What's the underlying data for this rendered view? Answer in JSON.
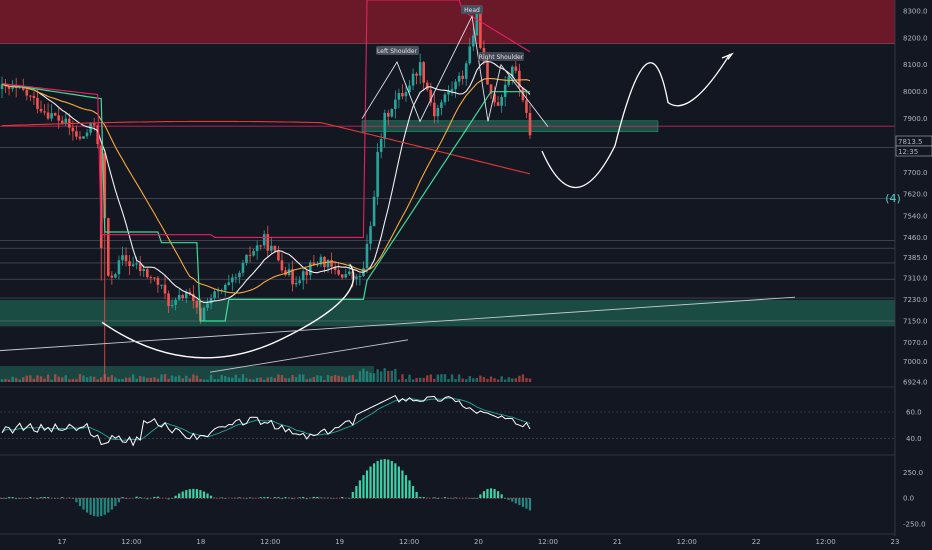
{
  "colors": {
    "background": "#131722",
    "grid": "#2a2e39",
    "up": "#26a69a",
    "down": "#ef5350",
    "supply_zone": "#7b1a2a",
    "demand_zone": "#1e5a4e",
    "stop_line": "#e91e63",
    "ma_fast": "#f0f0f0",
    "ma_mid": "#f6a93b",
    "ma_slow": "#e53935",
    "supertrend": "#3ddc97"
  },
  "chart_data": [
    {
      "type": "candlestick",
      "price_axis": {
        "ticks": [
          "8300.0",
          "8200.0",
          "8100.0",
          "8000.0",
          "7900.0",
          "7700.0",
          "7620.0",
          "7540.0",
          "7460.0",
          "7385.0",
          "7310.0",
          "7230.0",
          "7150.0",
          "7070.0",
          "7000.0",
          "6924.0"
        ],
        "range": [
          6920,
          8340
        ]
      },
      "time_axis": {
        "ticks": [
          "17",
          "12:00",
          "18",
          "12:00",
          "19",
          "12:00",
          "20",
          "12:00",
          "21",
          "12:00",
          "22",
          "12:00",
          "23"
        ]
      },
      "price_labels": [
        {
          "value": 7813.5,
          "text": "7813.5"
        },
        {
          "value": 7790,
          "text": "12:35"
        }
      ],
      "annotations": {
        "head": "Head",
        "left_shoulder": "Left Shoulder",
        "right_shoulder": "Right Shoulder",
        "wave_label": "(4)"
      },
      "zones": [
        {
          "name": "supply",
          "low": 8178,
          "high": 8340
        },
        {
          "name": "demand",
          "low": 7130,
          "high": 7228
        },
        {
          "name": "neckline-box",
          "low": 7852,
          "high": 7892
        }
      ],
      "horizontal_levels": [
        8178,
        7872,
        7793,
        7605,
        7448,
        7420,
        7365,
        7305,
        7235,
        7150
      ],
      "candles_start_price": 8010,
      "candles_count": 150
    },
    {
      "type": "line",
      "name": "oscillator",
      "ticks": [
        "60.0",
        "40.0"
      ],
      "range": [
        30,
        75
      ]
    },
    {
      "type": "bar",
      "name": "histogram",
      "ticks": [
        "250.0",
        "0.0",
        "-250.0"
      ],
      "range": [
        -330,
        400
      ]
    }
  ]
}
